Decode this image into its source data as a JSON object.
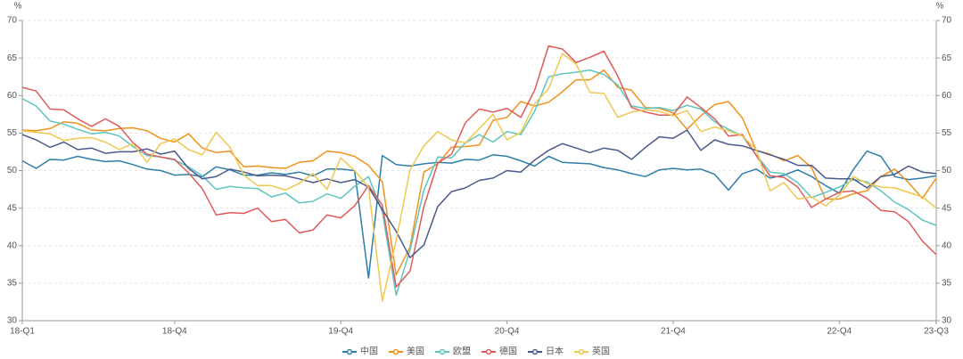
{
  "chart_data": {
    "type": "line",
    "ylabel": "%",
    "y2label": "%",
    "categories": [
      "18-Q1",
      null,
      null,
      null,
      null,
      null,
      null,
      null,
      null,
      null,
      null,
      "18-Q4",
      null,
      null,
      null,
      null,
      null,
      null,
      null,
      null,
      null,
      null,
      null,
      "19-Q4",
      null,
      null,
      null,
      null,
      null,
      null,
      null,
      null,
      null,
      null,
      null,
      "20-Q4",
      null,
      null,
      null,
      null,
      null,
      null,
      null,
      null,
      null,
      null,
      null,
      "21-Q4",
      null,
      null,
      null,
      null,
      null,
      null,
      null,
      null,
      null,
      null,
      null,
      "22-Q4",
      null,
      null,
      null,
      null,
      null,
      null,
      "23-Q3"
    ],
    "series": [
      {
        "name": "中国",
        "color": "#2e7ea8",
        "values": [
          51.3,
          50.3,
          51.5,
          51.4,
          51.9,
          51.5,
          51.2,
          51.3,
          50.8,
          50.2,
          50.0,
          49.4,
          49.5,
          49.2,
          50.5,
          50.1,
          49.4,
          49.4,
          49.7,
          49.5,
          49.8,
          49.3,
          50.2,
          50.2,
          50.0,
          35.7,
          52.0,
          50.8,
          50.6,
          50.9,
          51.1,
          51.0,
          51.5,
          51.4,
          52.1,
          51.9,
          51.3,
          50.6,
          51.9,
          51.1,
          51.0,
          50.9,
          50.4,
          50.1,
          49.6,
          49.2,
          50.1,
          50.3,
          50.1,
          50.2,
          49.5,
          47.4,
          49.6,
          50.2,
          49.0,
          49.4,
          50.1,
          49.2,
          48.0,
          47.0,
          50.1,
          52.6,
          51.9,
          49.2,
          48.8,
          49.0,
          49.3
        ]
      },
      {
        "name": "美国",
        "color": "#f0921e",
        "values": [
          55.4,
          55.3,
          55.6,
          56.5,
          56.3,
          55.4,
          55.3,
          55.6,
          55.7,
          55.3,
          54.3,
          53.8,
          54.9,
          53.0,
          52.4,
          52.6,
          50.5,
          50.6,
          50.4,
          50.3,
          51.1,
          51.3,
          52.6,
          52.4,
          51.9,
          50.7,
          48.5,
          36.1,
          39.8,
          49.8,
          50.9,
          53.1,
          53.2,
          53.4,
          56.7,
          57.1,
          59.2,
          58.6,
          59.1,
          60.5,
          62.1,
          62.1,
          63.4,
          61.1,
          60.7,
          58.4,
          58.3,
          57.7,
          55.5,
          57.3,
          58.8,
          59.2,
          57.0,
          52.7,
          52.2,
          51.3,
          52.0,
          50.4,
          46.2,
          46.2,
          46.9,
          47.3,
          49.2,
          50.2,
          48.4,
          46.3,
          49.0
        ]
      },
      {
        "name": "欧盟",
        "color": "#5ec4c0",
        "values": [
          59.6,
          58.6,
          56.6,
          56.2,
          55.5,
          54.9,
          55.1,
          54.6,
          53.2,
          52.0,
          51.8,
          51.4,
          50.5,
          49.3,
          47.5,
          47.9,
          47.7,
          47.6,
          46.5,
          47.0,
          45.7,
          45.9,
          46.9,
          46.3,
          47.9,
          49.2,
          44.5,
          33.4,
          39.4,
          47.4,
          51.8,
          51.7,
          53.7,
          54.8,
          53.8,
          55.2,
          54.8,
          57.9,
          62.5,
          62.9,
          63.1,
          63.4,
          62.8,
          61.4,
          58.6,
          58.3,
          58.4,
          58.0,
          58.7,
          58.2,
          56.5,
          55.5,
          54.6,
          52.1,
          49.8,
          49.6,
          48.4,
          46.4,
          47.1,
          47.8,
          48.8,
          48.5,
          47.3,
          45.8,
          44.8,
          43.4,
          42.7
        ]
      },
      {
        "name": "德国",
        "color": "#e05a5a",
        "values": [
          61.1,
          60.6,
          58.2,
          58.1,
          56.9,
          55.9,
          56.9,
          55.9,
          53.7,
          52.2,
          51.8,
          51.5,
          49.7,
          47.6,
          44.1,
          44.4,
          44.3,
          45.0,
          43.2,
          43.5,
          41.7,
          42.1,
          44.1,
          43.7,
          45.3,
          48.0,
          45.4,
          34.5,
          36.6,
          45.2,
          51.0,
          52.2,
          56.4,
          58.2,
          57.8,
          58.3,
          57.1,
          60.7,
          66.6,
          66.2,
          64.4,
          65.1,
          65.9,
          62.6,
          58.4,
          57.8,
          57.4,
          57.4,
          59.8,
          58.4,
          56.9,
          54.6,
          54.8,
          52.0,
          49.3,
          49.1,
          47.8,
          45.1,
          46.2,
          47.1,
          47.3,
          46.3,
          44.7,
          44.5,
          43.2,
          40.6,
          38.8
        ]
      },
      {
        "name": "日本",
        "color": "#4b5a8c",
        "values": [
          54.8,
          54.1,
          53.1,
          53.8,
          52.8,
          53.0,
          52.3,
          52.5,
          52.5,
          52.9,
          52.2,
          52.6,
          50.3,
          48.9,
          49.2,
          50.2,
          49.8,
          49.3,
          49.4,
          49.3,
          48.9,
          48.4,
          48.9,
          48.4,
          48.8,
          47.8,
          44.8,
          41.9,
          38.4,
          40.1,
          45.2,
          47.2,
          47.7,
          48.7,
          49.0,
          50.0,
          49.8,
          51.4,
          52.7,
          53.6,
          53.0,
          52.4,
          53.0,
          52.7,
          51.5,
          53.1,
          54.5,
          54.3,
          55.4,
          52.7,
          54.1,
          53.5,
          53.3,
          52.7,
          52.1,
          51.5,
          50.7,
          50.7,
          49.0,
          48.9,
          48.9,
          47.7,
          49.2,
          49.5,
          50.6,
          49.8,
          49.6
        ]
      },
      {
        "name": "英国",
        "color": "#f0c850",
        "values": [
          55.3,
          55.1,
          54.9,
          54.0,
          54.3,
          54.4,
          53.8,
          52.8,
          53.6,
          51.1,
          53.6,
          54.2,
          52.8,
          52.1,
          55.1,
          53.1,
          49.4,
          48.0,
          48.0,
          47.4,
          48.3,
          49.6,
          47.5,
          51.7,
          50.0,
          47.8,
          32.6,
          40.7,
          50.1,
          53.3,
          55.2,
          54.1,
          53.7,
          55.6,
          57.5,
          54.1,
          55.1,
          58.9,
          60.9,
          65.6,
          64.2,
          60.4,
          60.3,
          57.1,
          57.8,
          58.1,
          57.9,
          57.3,
          58.0,
          55.2,
          55.8,
          55.3,
          54.6,
          52.8,
          47.3,
          48.4,
          46.2,
          46.5,
          45.3,
          46.7,
          49.2,
          48.3,
          47.8,
          47.7,
          47.1,
          46.5,
          45.0
        ]
      }
    ],
    "ylim": [
      30,
      70
    ],
    "yticks": [
      30,
      35,
      40,
      45,
      50,
      55,
      60,
      65,
      70
    ],
    "y2lim": [
      30,
      70
    ],
    "y2ticks": [
      30,
      35,
      40,
      45,
      50,
      55,
      60,
      65,
      70
    ],
    "grid": true,
    "legend": "bottom"
  }
}
